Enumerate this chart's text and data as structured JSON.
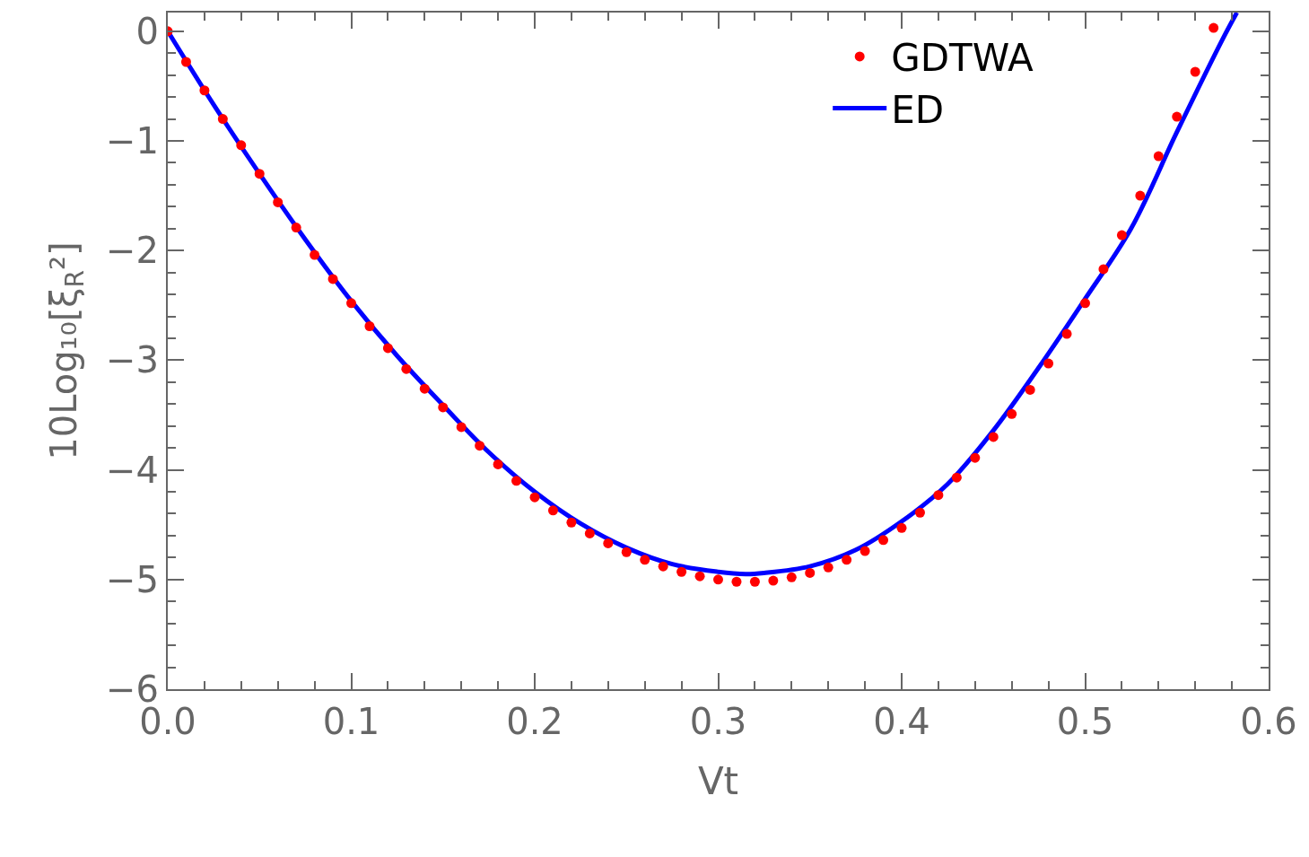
{
  "chart_data": {
    "type": "line",
    "xlabel": "Vt",
    "ylabel": "10Log₁₀[ξ$_{R}$²]",
    "xlim": [
      0,
      0.6
    ],
    "xticks": [
      {
        "value": 0,
        "label": "0.0"
      },
      0.1,
      0.2,
      0.3,
      0.4,
      0.5,
      0.6
    ],
    "ylim": [
      -6,
      0.17
    ],
    "yticks": [
      {
        "value": -6,
        "label": "−6"
      },
      {
        "value": -5,
        "label": "−5"
      },
      {
        "value": -4,
        "label": "−4"
      },
      {
        "value": -3,
        "label": "−3"
      },
      {
        "value": -2,
        "label": "−2"
      },
      {
        "value": -1,
        "label": "−1"
      },
      0
    ],
    "legend": "top right",
    "series": [
      {
        "name": "GDTWA",
        "type": "scatter",
        "marker": "circle",
        "color": "#ff0000",
        "x": [
          0,
          0.01,
          0.02,
          0.03,
          0.04,
          0.05,
          0.06,
          0.07,
          0.08,
          0.09,
          0.1,
          0.11,
          0.12,
          0.13,
          0.14,
          0.15,
          0.16,
          0.17,
          0.18,
          0.19,
          0.2,
          0.21,
          0.22,
          0.23,
          0.24,
          0.25,
          0.26,
          0.27,
          0.28,
          0.29,
          0.3,
          0.31,
          0.32,
          0.33,
          0.34,
          0.35,
          0.36,
          0.37,
          0.38,
          0.39,
          0.4,
          0.41,
          0.42,
          0.43,
          0.44,
          0.45,
          0.46,
          0.47,
          0.48,
          0.49,
          0.5,
          0.51,
          0.52,
          0.53,
          0.54,
          0.55,
          0.56,
          0.57
        ],
        "values": [
          0,
          -0.28,
          -0.54,
          -0.8,
          -1.04,
          -1.3,
          -1.56,
          -1.79,
          -2.04,
          -2.26,
          -2.48,
          -2.69,
          -2.89,
          -3.08,
          -3.26,
          -3.43,
          -3.61,
          -3.78,
          -3.95,
          -4.1,
          -4.25,
          -4.37,
          -4.48,
          -4.58,
          -4.67,
          -4.75,
          -4.82,
          -4.88,
          -4.93,
          -4.97,
          -5,
          -5.02,
          -5.02,
          -5.01,
          -4.98,
          -4.94,
          -4.89,
          -4.82,
          -4.74,
          -4.64,
          -4.53,
          -4.39,
          -4.23,
          -4.07,
          -3.89,
          -3.7,
          -3.49,
          -3.27,
          -3.03,
          -2.76,
          -2.48,
          -2.17,
          -1.86,
          -1.5,
          -1.14,
          -0.78,
          -0.37,
          0.03
        ]
      },
      {
        "name": "ED",
        "line_style": "solid",
        "color": "#0000ff",
        "x": [
          0,
          0.025,
          0.05,
          0.075,
          0.1,
          0.125,
          0.15,
          0.175,
          0.2,
          0.225,
          0.25,
          0.275,
          0.3,
          0.315,
          0.325,
          0.35,
          0.375,
          0.4,
          0.425,
          0.45,
          0.475,
          0.5,
          0.525,
          0.55,
          0.575,
          0.5827
        ],
        "values": [
          0,
          -0.67,
          -1.3,
          -1.9,
          -2.46,
          -2.96,
          -3.41,
          -3.84,
          -4.2,
          -4.49,
          -4.71,
          -4.86,
          -4.93,
          -4.95,
          -4.94,
          -4.88,
          -4.73,
          -4.47,
          -4.13,
          -3.64,
          -3.06,
          -2.44,
          -1.8,
          -0.92,
          -0.07,
          0.17
        ]
      }
    ]
  }
}
